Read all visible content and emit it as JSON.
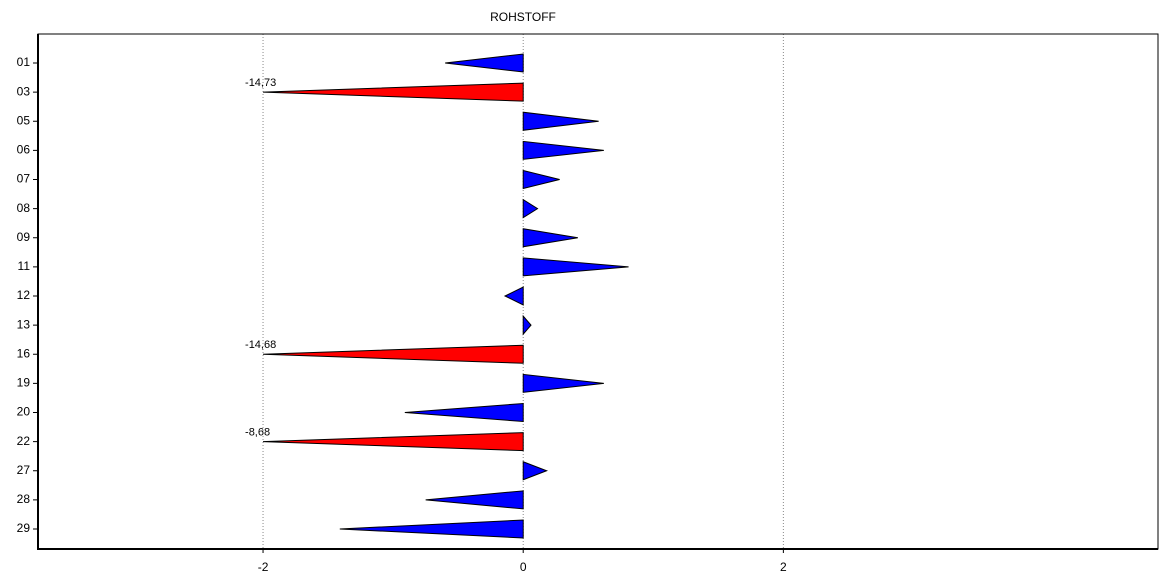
{
  "chart_data": {
    "type": "triangle-bar",
    "title": "ROHSTOFF",
    "categories": [
      "01",
      "03",
      "05",
      "06",
      "07",
      "08",
      "09",
      "11",
      "12",
      "13",
      "16",
      "19",
      "20",
      "22",
      "27",
      "28",
      "29"
    ],
    "values": [
      -0.6,
      -14.73,
      0.58,
      0.62,
      0.28,
      0.11,
      0.42,
      0.81,
      -0.14,
      0.06,
      -14.68,
      0.62,
      -0.91,
      -8.68,
      0.18,
      -0.75,
      -1.41
    ],
    "value_labels": [
      null,
      "-14,73",
      null,
      null,
      null,
      null,
      null,
      null,
      null,
      null,
      "-14,68",
      null,
      null,
      "-8,68",
      null,
      null,
      null
    ],
    "color": "#0000ff",
    "overflow_color": "#ff0000",
    "xlim": [
      -3.73,
      4.88
    ],
    "xticks": [
      -2,
      0,
      2
    ],
    "grid": true
  }
}
